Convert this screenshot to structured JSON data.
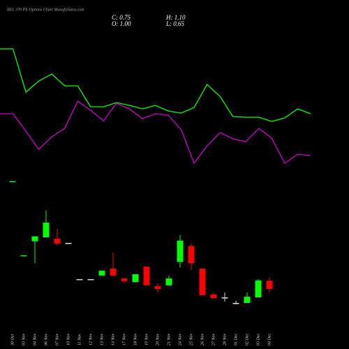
{
  "chart_data": [
    {
      "type": "line",
      "categories": [
        null,
        null,
        null,
        null,
        null,
        null,
        null,
        null,
        null,
        null,
        null,
        null,
        null,
        null,
        null,
        null,
        null,
        null,
        null,
        null,
        null,
        null,
        null,
        null,
        null
      ],
      "ylim": [
        0,
        100
      ],
      "series": [
        {
          "color": "#00ff00",
          "values": [
            95,
            95,
            64,
            72,
            77,
            68.5,
            68.5,
            53.5,
            53.5,
            56.5,
            54.5,
            52,
            54.5,
            50.5,
            49,
            53,
            69.5,
            61,
            46.5,
            46,
            46,
            43,
            45.5,
            52,
            48.5
          ]
        },
        {
          "color": "#cc00cc",
          "values": [
            48.5,
            48.5,
            36,
            23,
            32,
            38,
            57.5,
            51,
            43.5,
            56,
            52,
            45,
            48.5,
            47.5,
            37,
            13,
            25.5,
            35,
            30.5,
            28.5,
            38,
            31,
            13,
            19.5,
            18.5
          ]
        }
      ]
    },
    {
      "type": "candlestick",
      "title": "BEL 370 PE Options Chart MunafaSutra.com",
      "annotations": [
        "C: 0.75",
        "H: 1.10",
        "O: 1.00",
        "L: 0.65"
      ],
      "categories": [
        "30 Oct",
        "03 Nov",
        "04 Nov",
        "06 Nov",
        "07 Nov",
        "10 Nov",
        "11 Nov",
        "12 Nov",
        "13 Nov",
        "14 Nov",
        "17 Nov",
        "18 Nov",
        "19 Nov",
        "20 Nov",
        "21 Nov",
        "24 Nov",
        "25 Nov",
        "26 Nov",
        "27 Nov",
        "28 Nov",
        "01 Dec",
        "02 Dec",
        "03 Dec",
        "04 Dec"
      ],
      "open": [
        4.05,
        1.78,
        2.21,
        2.33,
        2.29,
        2.16,
        1.05,
        1.05,
        1.16,
        1.37,
        1.07,
        0.96,
        1.43,
        0.83,
        0.86,
        1.58,
        2.06,
        1.37,
        0.58,
        0.49,
        0.32,
        0.32,
        0.49,
        1.0
      ],
      "high": [
        4.05,
        1.78,
        2.36,
        3.15,
        2.59,
        2.16,
        1.05,
        1.05,
        1.31,
        1.86,
        1.07,
        1.2,
        1.43,
        0.92,
        1.16,
        2.4,
        2.14,
        1.37,
        0.62,
        0.64,
        0.39,
        0.64,
        1.05,
        1.1
      ],
      "low": [
        4.05,
        1.78,
        1.54,
        2.33,
        2.08,
        2.16,
        1.05,
        1.05,
        1.16,
        1.16,
        0.94,
        0.94,
        0.86,
        0.64,
        0.86,
        1.41,
        1.33,
        0.56,
        0.45,
        0.36,
        0.28,
        0.32,
        0.49,
        0.65
      ],
      "close": [
        4.05,
        1.78,
        2.36,
        2.78,
        2.14,
        2.16,
        1.05,
        1.05,
        1.31,
        1.16,
        0.99,
        1.2,
        0.86,
        0.75,
        1.07,
        2.23,
        1.54,
        0.56,
        0.47,
        0.49,
        0.32,
        0.51,
        1.01,
        0.75
      ],
      "up_color": "#00ff00",
      "down_color": "#ff0000",
      "ylim": [
        0,
        9.6
      ]
    }
  ]
}
